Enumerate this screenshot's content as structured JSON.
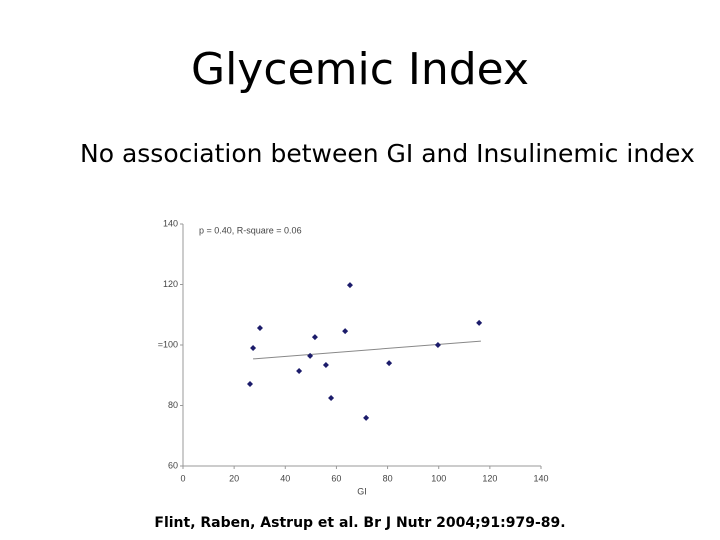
{
  "title": "Glycemic Index",
  "bullet": "No association between GI and Insulinemic index",
  "citation": "Flint, Raben, Astrup et al. Br J Nutr 2004;91:979-89.",
  "chart_data": {
    "type": "scatter",
    "annotation": "p = 0.40, R-square = 0.06",
    "x_label": "GI",
    "color": "#1c1c6b",
    "series": [
      {
        "x": [
          26.2,
          27.4,
          30.1,
          45.4,
          49.7,
          51.6,
          55.9,
          57.9,
          63.4,
          65.3,
          71.6,
          80.6,
          99.7,
          115.8
        ],
        "values": [
          87.1,
          99.0,
          105.6,
          91.4,
          96.4,
          102.6,
          93.4,
          82.5,
          104.6,
          119.8,
          75.9,
          94.0,
          100.0,
          107.3
        ]
      }
    ],
    "trendline": {
      "x": [
        27.4,
        116.5
      ],
      "values": [
        95.4,
        101.3
      ],
      "color": "#888888"
    },
    "xlim": [
      0,
      140
    ],
    "xticks": [
      0,
      20,
      40,
      60,
      80,
      100,
      120,
      140
    ],
    "ylim": [
      60,
      140
    ],
    "yticks": [
      60,
      80,
      {
        "value": 100,
        "label": "=100"
      },
      120,
      140
    ]
  }
}
